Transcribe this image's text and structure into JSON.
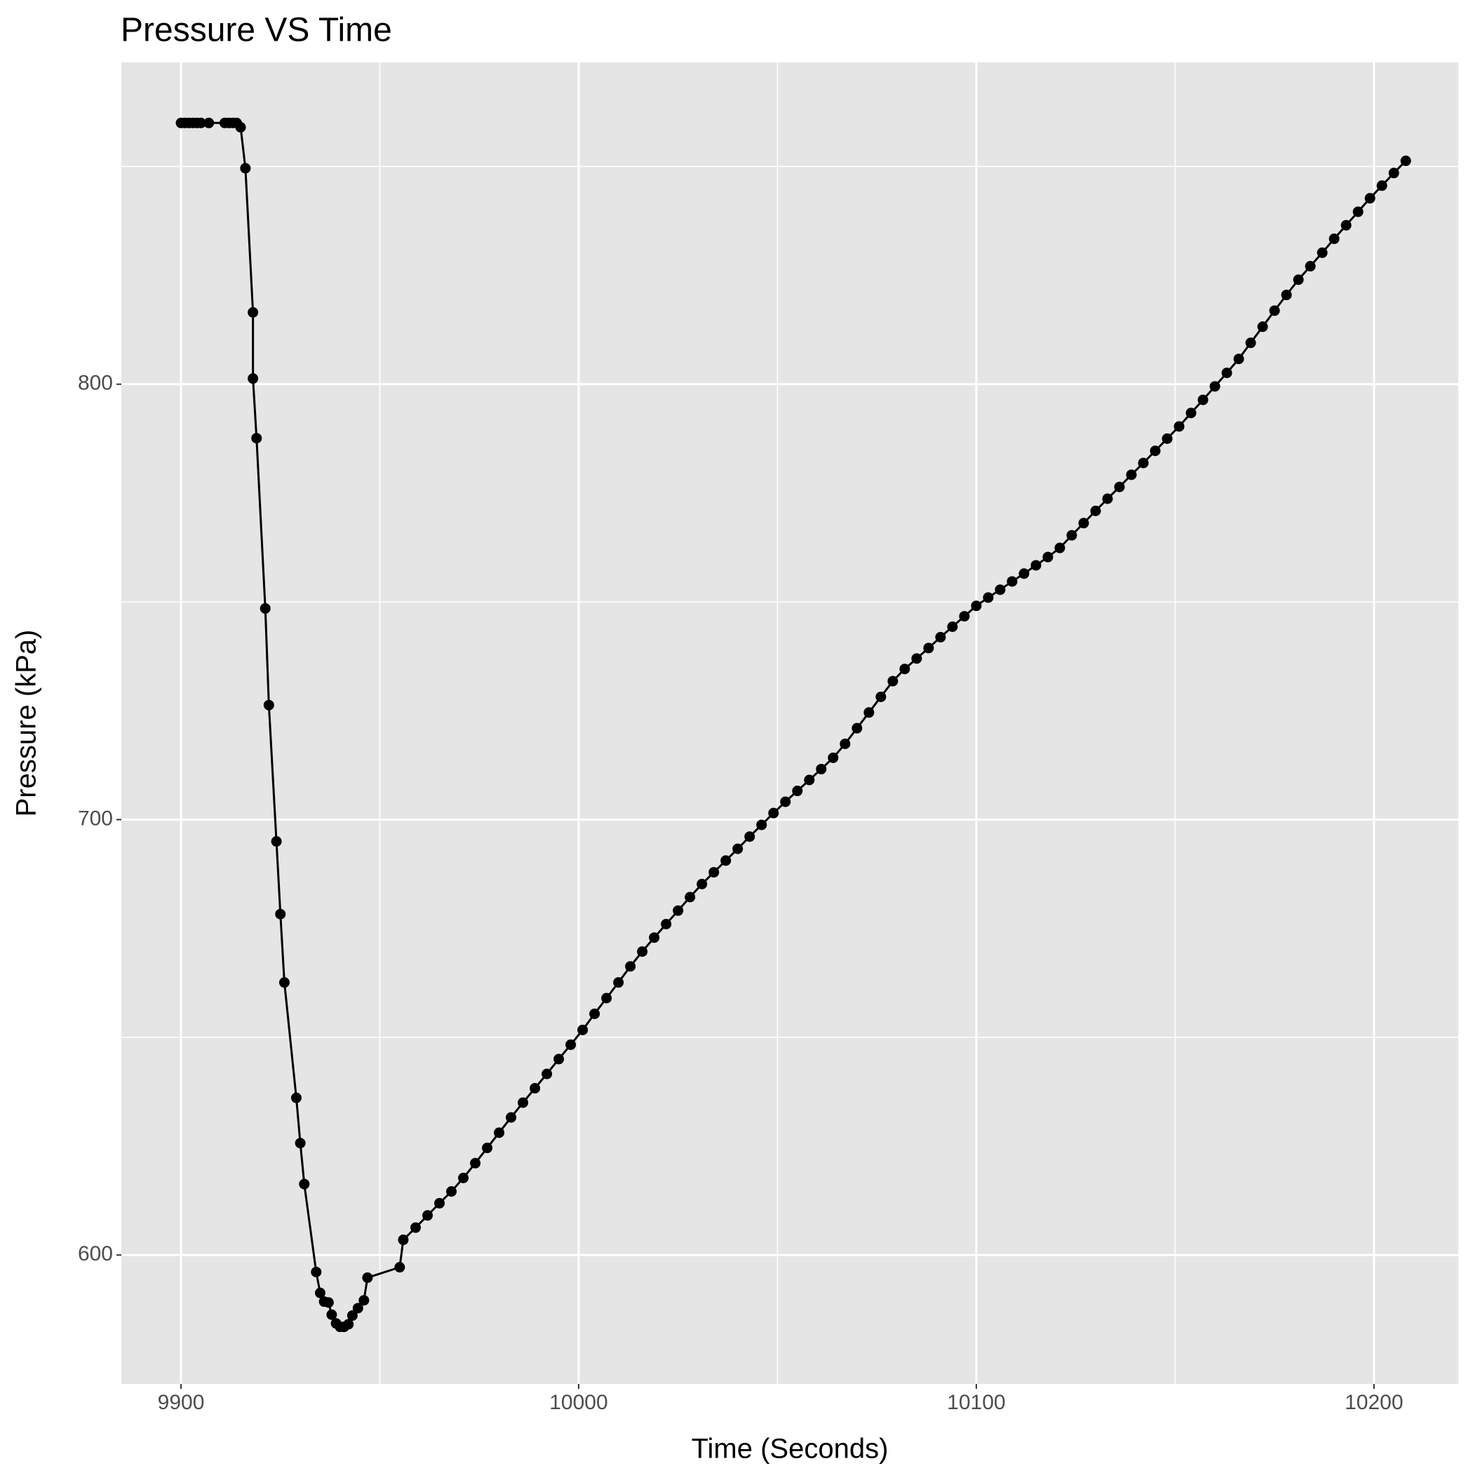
{
  "chart_data": {
    "type": "line",
    "title": "Pressure VS Time",
    "x_label": "Time (Seconds)",
    "y_label": "Pressure (kPa)",
    "x": [
      9900,
      9901,
      9902,
      9903,
      9904,
      9905,
      9907,
      9911,
      9912,
      9913,
      9914,
      9915,
      9916.2,
      9918.1,
      9918.1,
      9919.0,
      9921.2,
      9922.1,
      9924.0,
      9925.0,
      9926.0,
      9929.0,
      9930.0,
      9931.0,
      9934.0,
      9935.0,
      9936.0,
      9937.1,
      9937.9,
      9939.0,
      9940.0,
      9941.0,
      9942.1,
      9943.1,
      9944.5,
      9946.0,
      9946.9,
      9955.0,
      9955.9,
      9959,
      9962,
      9965,
      9968,
      9971,
      9974,
      9977,
      9980,
      9983,
      9986,
      9989,
      9992,
      9995,
      9998,
      10001,
      10004,
      10007,
      10010,
      10013,
      10016,
      10019,
      10022,
      10025,
      10028,
      10031,
      10034,
      10037,
      10040,
      10043,
      10046,
      10049,
      10052,
      10055,
      10058,
      10061,
      10064,
      10067,
      10070,
      10073,
      10076,
      10079,
      10082,
      10085,
      10088,
      10091,
      10094,
      10097,
      10100,
      10103,
      10106,
      10109,
      10112,
      10115,
      10118,
      10121,
      10124,
      10127,
      10130,
      10133,
      10136,
      10139,
      10142,
      10145,
      10148,
      10151,
      10154,
      10157,
      10160,
      10163,
      10166,
      10169,
      10172,
      10175,
      10178,
      10181,
      10184,
      10187,
      10190,
      10193,
      10196,
      10199,
      10202,
      10205,
      10208
    ],
    "series": [
      {
        "name": "Pressure",
        "color": "#000000",
        "values": [
          860,
          860,
          860,
          860,
          860,
          860,
          860,
          860,
          860,
          860,
          860,
          859,
          849.6,
          816.5,
          801.3,
          787.6,
          748.5,
          726.3,
          695.0,
          678.3,
          662.6,
          636.1,
          625.7,
          616.3,
          596.1,
          591.3,
          589.3,
          589.1,
          586.3,
          584.3,
          583.5,
          583.5,
          584.1,
          586.1,
          587.8,
          589.6,
          594.8,
          597.2,
          603.5,
          606.3,
          609.1,
          611.9,
          614.6,
          617.7,
          621.1,
          624.6,
          628.1,
          631.6,
          635.0,
          638.3,
          641.6,
          645.0,
          648.3,
          651.7,
          655.4,
          659.0,
          662.6,
          666.3,
          669.7,
          672.9,
          676.0,
          679.1,
          682.2,
          685.2,
          687.9,
          690.6,
          693.3,
          696.1,
          698.8,
          701.5,
          704.1,
          706.6,
          709.1,
          711.6,
          714.2,
          717.4,
          721.0,
          724.6,
          728.2,
          731.8,
          734.6,
          737.0,
          739.4,
          741.9,
          744.3,
          746.7,
          749.1,
          751.0,
          752.8,
          754.7,
          756.5,
          758.4,
          760.3,
          762.4,
          765.3,
          768.1,
          770.9,
          773.7,
          776.4,
          779.2,
          781.9,
          784.7,
          787.5,
          790.3,
          793.4,
          796.4,
          799.5,
          802.6,
          805.8,
          809.5,
          813.2,
          816.9,
          820.5,
          824.0,
          827.1,
          830.2,
          833.4,
          836.5,
          839.6,
          842.7,
          845.6,
          848.5,
          851.3
        ]
      }
    ],
    "xlim": [
      9885,
      10221.2
    ],
    "ylim": [
      570.4,
      873.9
    ],
    "xticks": [
      9900,
      10000,
      10100,
      10200
    ],
    "yticks": [
      600,
      700,
      800
    ],
    "x_minor_ticks": [
      9950,
      10050,
      10150
    ],
    "y_minor_ticks": [
      650,
      750,
      850
    ],
    "grid": true,
    "markers": true
  }
}
